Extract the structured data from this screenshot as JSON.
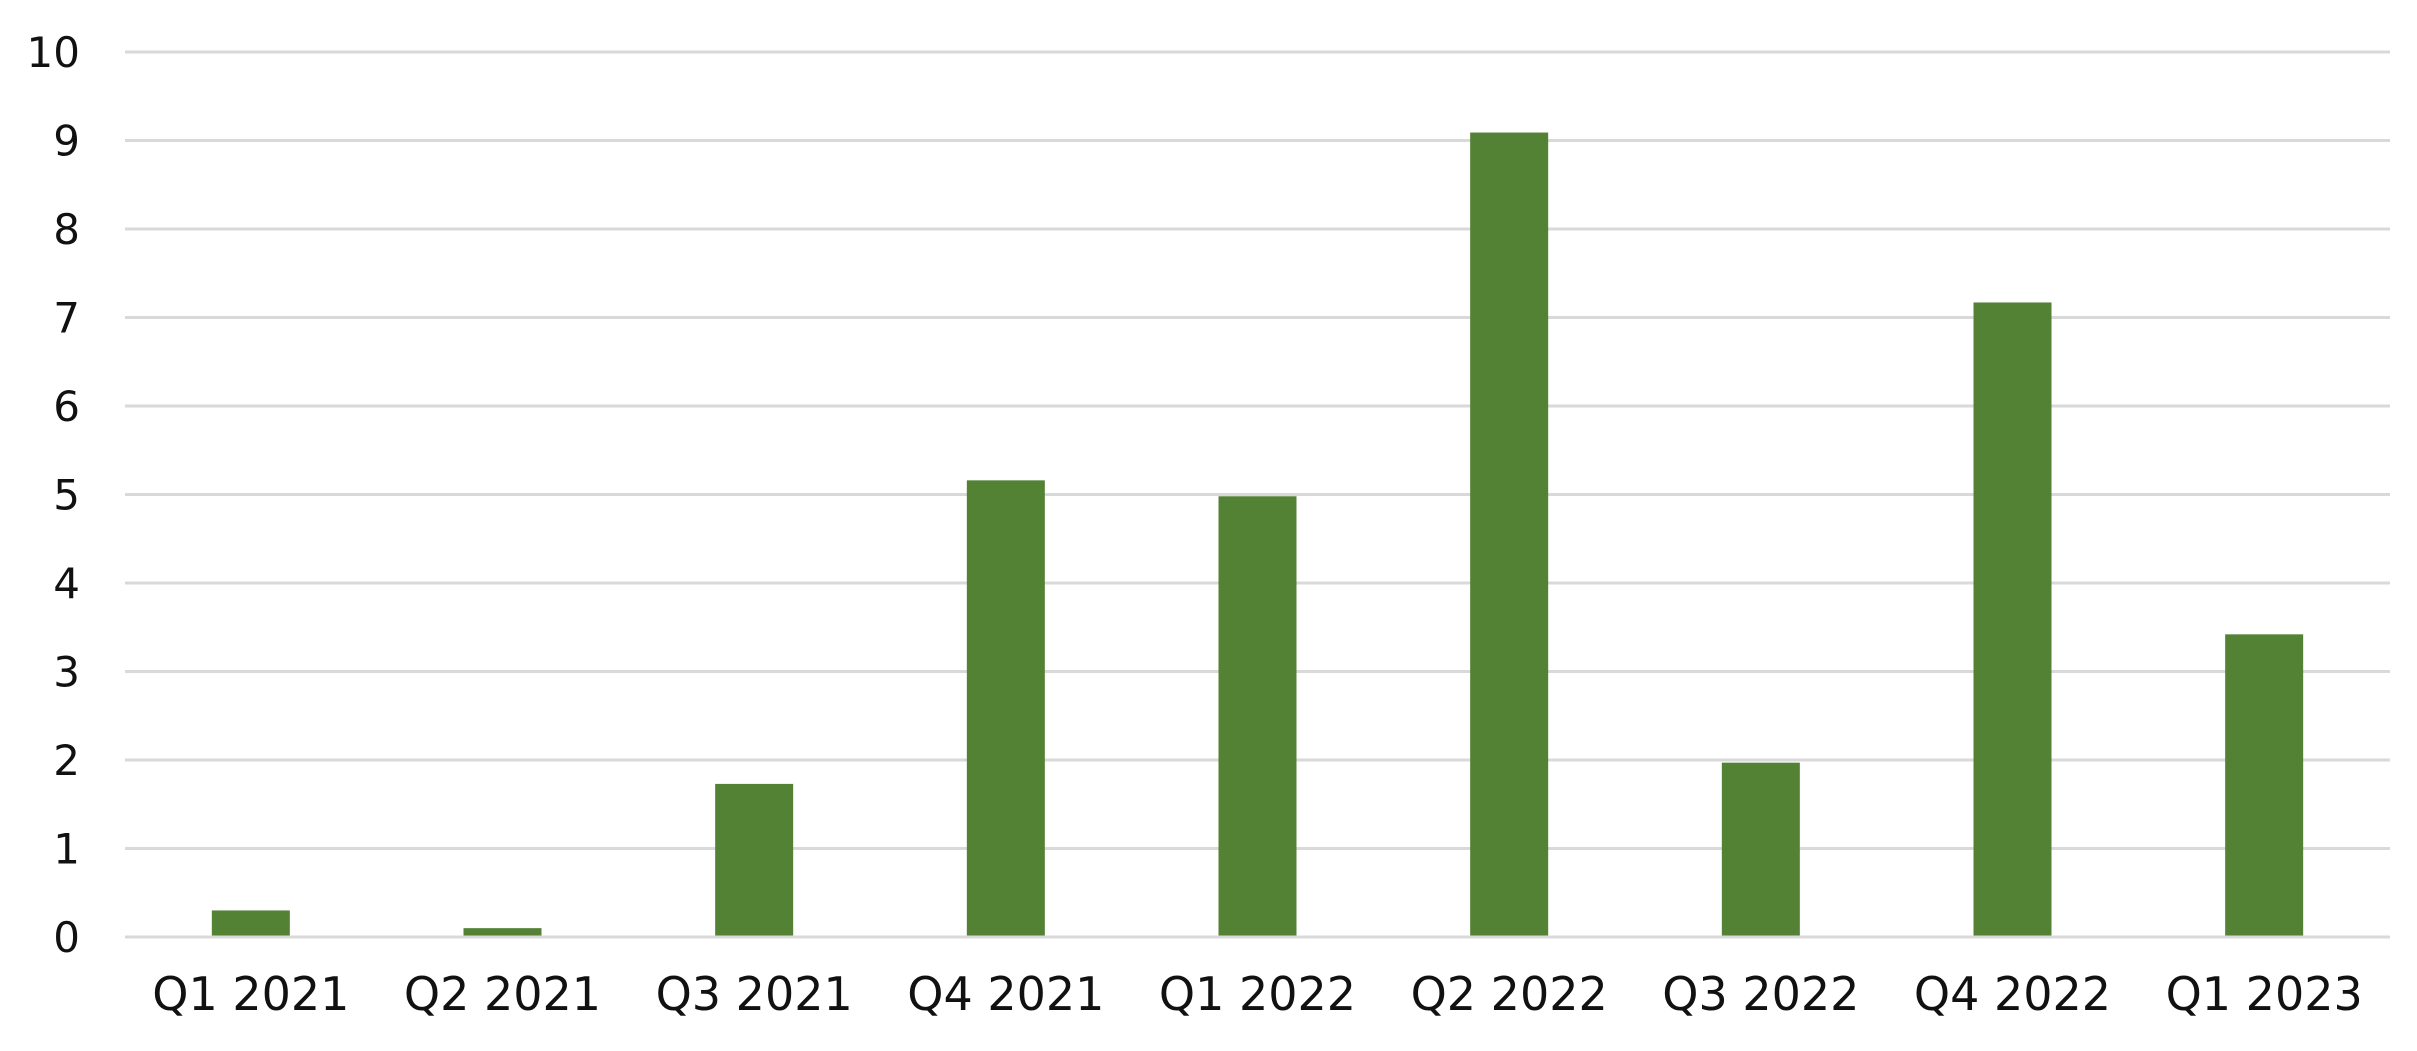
{
  "chart_data": {
    "type": "bar",
    "title": "",
    "xlabel": "",
    "ylabel": "",
    "categories": [
      "Q1 2021",
      "Q2 2021",
      "Q3 2021",
      "Q4 2021",
      "Q1 2022",
      "Q2 2022",
      "Q3 2022",
      "Q4 2022",
      "Q1 2023"
    ],
    "values": [
      0.3,
      0.1,
      1.73,
      5.16,
      4.98,
      9.09,
      1.97,
      7.17,
      3.42
    ],
    "ylim": [
      0,
      10
    ],
    "yticks": [
      "0",
      "1",
      "2",
      "3",
      "4",
      "5",
      "6",
      "7",
      "8",
      "9",
      "10"
    ],
    "grid": true,
    "legend": "none",
    "colors": {
      "bar": "#548235",
      "grid": "#d9d9d9"
    }
  }
}
